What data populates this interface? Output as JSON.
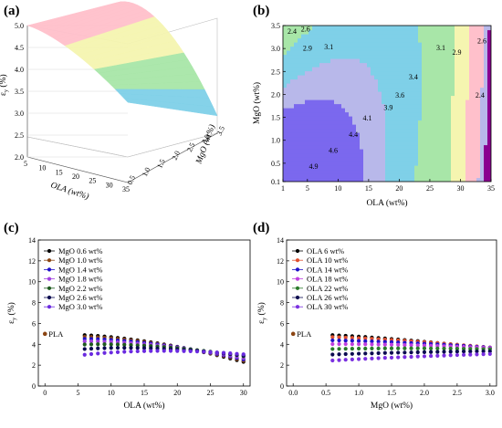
{
  "chart_data": [
    {
      "panel": "(a)",
      "type": "surface",
      "xlabel": "OLA (wt%)",
      "ylabel": "MgO (wt%)",
      "zlabel": "ε_y (%)",
      "x_ticks": [
        "5",
        "10",
        "15",
        "20",
        "25",
        "30",
        "35"
      ],
      "y_ticks": [
        "0.5",
        "1.0",
        "1.5",
        "2.0",
        "2.5",
        "3.0",
        "3.5"
      ],
      "z_ticks": [
        "5.0",
        "4.5",
        "4.0",
        "3.5",
        "3.0",
        "2.5",
        "2.0"
      ],
      "zlim": [
        2.0,
        5.0
      ],
      "grid": true,
      "colors": [
        "#ffc0cb",
        "#f5f5b0",
        "#a8e6a8",
        "#7fd0e8",
        "#b8b8ea",
        "#8a0090"
      ]
    },
    {
      "panel": "(b)",
      "type": "contour",
      "xlabel": "OLA (wt%)",
      "ylabel": "MgO (wt%)",
      "x_ticks": [
        "1",
        "5",
        "10",
        "15",
        "20",
        "25",
        "30",
        "35"
      ],
      "y_ticks": [
        "0.1",
        "0.5",
        "1.0",
        "1.5",
        "2.0",
        "2.5",
        "3.0",
        "3.5"
      ],
      "xlim": [
        1,
        35
      ],
      "ylim": [
        0.1,
        3.5
      ],
      "levels": [
        2.4,
        2.6,
        2.9,
        3.1,
        3.4,
        3.6,
        3.9,
        4.1,
        4.4,
        4.6,
        4.9
      ],
      "labels": [
        {
          "text": "2.4",
          "x": 2.5,
          "y": 3.32
        },
        {
          "text": "2.6",
          "x": 4.7,
          "y": 3.37
        },
        {
          "text": "2.9",
          "x": 5.0,
          "y": 2.95
        },
        {
          "text": "3.1",
          "x": 8.5,
          "y": 2.98
        },
        {
          "text": "3.4",
          "x": 22.3,
          "y": 2.33
        },
        {
          "text": "3.6",
          "x": 20.1,
          "y": 1.93
        },
        {
          "text": "3.9",
          "x": 18.2,
          "y": 1.66
        },
        {
          "text": "4.1",
          "x": 14.8,
          "y": 1.43
        },
        {
          "text": "4.4",
          "x": 12.5,
          "y": 1.07
        },
        {
          "text": "4.6",
          "x": 9.2,
          "y": 0.73
        },
        {
          "text": "4.9",
          "x": 6.0,
          "y": 0.38
        },
        {
          "text": "3.1",
          "x": 26.8,
          "y": 2.96
        },
        {
          "text": "2.9",
          "x": 29.4,
          "y": 2.86
        },
        {
          "text": "2.6",
          "x": 33.5,
          "y": 3.11
        },
        {
          "text": "2.4",
          "x": 33.2,
          "y": 1.93
        }
      ],
      "colors": [
        "#8a0090",
        "#b8b8ea",
        "#ffc0cb",
        "#f5f5b0",
        "#a8e6a8",
        "#7fd0e8",
        "#7b68ee"
      ]
    },
    {
      "panel": "(c)",
      "type": "scatter",
      "xlabel": "OLA (wt%)",
      "ylabel": "ε_y (%)",
      "xlim": [
        -1,
        31
      ],
      "ylim": [
        0,
        14
      ],
      "x_ticks": [
        "0",
        "5",
        "10",
        "15",
        "20",
        "25",
        "30"
      ],
      "y_ticks": [
        "0",
        "2",
        "4",
        "6",
        "8",
        "10",
        "12",
        "14"
      ],
      "reference": {
        "label": "PLA",
        "x": 0,
        "y": 5.0
      },
      "x": [
        6,
        7,
        8,
        9,
        10,
        11,
        12,
        13,
        14,
        15,
        16,
        17,
        18,
        19,
        20,
        21,
        22,
        23,
        24,
        25,
        26,
        27,
        28,
        29,
        30
      ],
      "series": [
        {
          "name": "MgO 0.6 wt%",
          "color": "#000000",
          "values": [
            4.88,
            4.85,
            4.8,
            4.75,
            4.69,
            4.62,
            4.55,
            4.47,
            4.39,
            4.3,
            4.2,
            4.1,
            3.99,
            3.88,
            3.76,
            3.64,
            3.51,
            3.38,
            3.24,
            3.1,
            2.95,
            2.8,
            2.64,
            2.48,
            2.32
          ]
        },
        {
          "name": "MgO 1.0 wt%",
          "color": "#8b4513",
          "values": [
            4.72,
            4.7,
            4.67,
            4.63,
            4.58,
            4.52,
            4.46,
            4.39,
            4.32,
            4.24,
            4.15,
            4.06,
            3.96,
            3.86,
            3.75,
            3.64,
            3.52,
            3.4,
            3.27,
            3.14,
            3.01,
            2.87,
            2.73,
            2.58,
            2.43
          ]
        },
        {
          "name": "MgO 1.4 wt%",
          "color": "#1f10c8",
          "values": [
            4.52,
            4.51,
            4.49,
            4.46,
            4.42,
            4.37,
            4.32,
            4.27,
            4.21,
            4.14,
            4.07,
            3.99,
            3.91,
            3.82,
            3.73,
            3.63,
            3.53,
            3.42,
            3.31,
            3.19,
            3.07,
            2.95,
            2.82,
            2.69,
            2.55
          ]
        },
        {
          "name": "MgO 1.8 wt%",
          "color": "#a040e0",
          "values": [
            4.28,
            4.28,
            4.27,
            4.25,
            4.23,
            4.2,
            4.16,
            4.12,
            4.07,
            4.02,
            3.96,
            3.9,
            3.83,
            3.76,
            3.68,
            3.6,
            3.51,
            3.42,
            3.33,
            3.23,
            3.13,
            3.02,
            2.91,
            2.8,
            2.68
          ]
        },
        {
          "name": "MgO 2.2 wt%",
          "color": "#1e5a1e",
          "values": [
            3.98,
            3.99,
            4.0,
            4.0,
            3.99,
            3.98,
            3.96,
            3.93,
            3.9,
            3.87,
            3.83,
            3.79,
            3.74,
            3.69,
            3.63,
            3.57,
            3.51,
            3.44,
            3.37,
            3.29,
            3.21,
            3.13,
            3.04,
            2.95,
            2.85
          ]
        },
        {
          "name": "MgO 2.6 wt%",
          "color": "#0a0a50",
          "values": [
            3.55,
            3.58,
            3.61,
            3.63,
            3.65,
            3.66,
            3.66,
            3.66,
            3.65,
            3.64,
            3.62,
            3.6,
            3.57,
            3.54,
            3.5,
            3.46,
            3.42,
            3.37,
            3.32,
            3.26,
            3.2,
            3.14,
            3.07,
            3.0,
            2.92
          ]
        },
        {
          "name": "MgO 3.0 wt%",
          "color": "#6a2ae0",
          "values": [
            3.0,
            3.06,
            3.12,
            3.17,
            3.21,
            3.25,
            3.28,
            3.31,
            3.33,
            3.35,
            3.36,
            3.37,
            3.37,
            3.37,
            3.36,
            3.35,
            3.33,
            3.31,
            3.28,
            3.25,
            3.22,
            3.18,
            3.14,
            3.09,
            3.04
          ]
        }
      ]
    },
    {
      "panel": "(d)",
      "type": "scatter",
      "xlabel": "MgO (wt%)",
      "ylabel": "ε_y (%)",
      "xlim": [
        -0.1,
        3.1
      ],
      "ylim": [
        0,
        14
      ],
      "x_ticks": [
        "0.0",
        "0.5",
        "1.0",
        "1.5",
        "2.0",
        "2.5",
        "3.0"
      ],
      "y_ticks": [
        "0",
        "2",
        "4",
        "6",
        "8",
        "10",
        "12",
        "14"
      ],
      "reference": {
        "label": "PLA",
        "x": 0,
        "y": 5.0
      },
      "x": [
        0.6,
        0.7,
        0.8,
        0.9,
        1.0,
        1.1,
        1.2,
        1.3,
        1.4,
        1.5,
        1.6,
        1.7,
        1.8,
        1.9,
        2.0,
        2.1,
        2.2,
        2.3,
        2.4,
        2.5,
        2.6,
        2.7,
        2.8,
        2.9,
        3.0
      ],
      "series": [
        {
          "name": "OLA   6 wt%",
          "color": "#000000",
          "values": [
            4.88,
            4.85,
            4.82,
            4.78,
            4.74,
            4.7,
            4.65,
            4.61,
            4.56,
            4.51,
            4.46,
            4.41,
            4.36,
            4.31,
            4.25,
            4.19,
            4.13,
            4.07,
            4.01,
            3.95,
            3.89,
            3.83,
            3.76,
            3.7,
            3.63
          ]
        },
        {
          "name": "OLA 10 wt%",
          "color": "#e05030",
          "values": [
            4.69,
            4.67,
            4.64,
            4.62,
            4.59,
            4.56,
            4.53,
            4.49,
            4.45,
            4.42,
            4.38,
            4.34,
            4.29,
            4.25,
            4.21,
            4.16,
            4.11,
            4.06,
            4.01,
            3.96,
            3.91,
            3.86,
            3.81,
            3.75,
            3.7
          ]
        },
        {
          "name": "OLA 14 wt%",
          "color": "#1f10c8",
          "values": [
            4.38,
            4.37,
            4.35,
            4.34,
            4.32,
            4.3,
            4.28,
            4.26,
            4.23,
            4.21,
            4.18,
            4.15,
            4.12,
            4.09,
            4.06,
            4.03,
            3.99,
            3.96,
            3.92,
            3.89,
            3.85,
            3.81,
            3.77,
            3.73,
            3.69
          ]
        },
        {
          "name": "OLA 18 wt%",
          "color": "#c040e0",
          "values": [
            4.02,
            4.02,
            4.02,
            4.01,
            4.01,
            4.0,
            3.99,
            3.98,
            3.97,
            3.96,
            3.95,
            3.93,
            3.92,
            3.9,
            3.88,
            3.86,
            3.84,
            3.82,
            3.8,
            3.78,
            3.76,
            3.73,
            3.71,
            3.68,
            3.66
          ]
        },
        {
          "name": "OLA 22 wt%",
          "color": "#2a7a2a",
          "values": [
            3.55,
            3.56,
            3.57,
            3.58,
            3.59,
            3.59,
            3.6,
            3.6,
            3.61,
            3.61,
            3.61,
            3.61,
            3.61,
            3.61,
            3.61,
            3.6,
            3.6,
            3.59,
            3.59,
            3.58,
            3.57,
            3.56,
            3.55,
            3.54,
            3.53
          ]
        },
        {
          "name": "OLA 26 wt%",
          "color": "#0a0a50",
          "values": [
            3.02,
            3.04,
            3.06,
            3.08,
            3.1,
            3.12,
            3.13,
            3.15,
            3.17,
            3.18,
            3.2,
            3.21,
            3.22,
            3.24,
            3.25,
            3.26,
            3.27,
            3.28,
            3.29,
            3.3,
            3.31,
            3.31,
            3.32,
            3.33,
            3.33
          ]
        },
        {
          "name": "OLA 30 wt%",
          "color": "#7a30e0",
          "values": [
            2.45,
            2.48,
            2.52,
            2.55,
            2.58,
            2.61,
            2.64,
            2.67,
            2.7,
            2.72,
            2.75,
            2.78,
            2.8,
            2.83,
            2.85,
            2.88,
            2.9,
            2.92,
            2.95,
            2.97,
            2.99,
            3.01,
            3.03,
            3.05,
            3.07
          ]
        }
      ]
    }
  ]
}
